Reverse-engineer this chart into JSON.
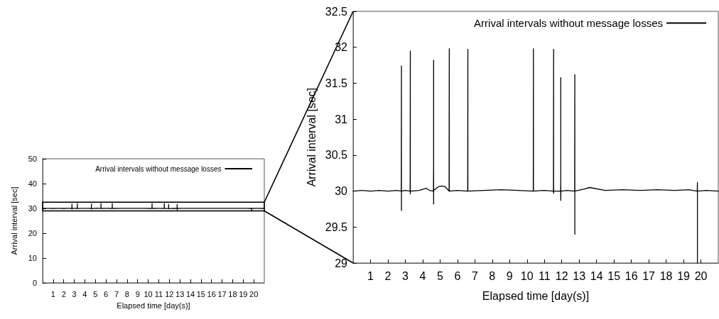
{
  "chart_data": [
    {
      "type": "line",
      "xlabel": "Elapsed time [day(s)]",
      "ylabel": "Arrival interval [sec]",
      "xlim": [
        0,
        21
      ],
      "xticks": [
        1,
        2,
        3,
        4,
        5,
        6,
        7,
        8,
        9,
        10,
        11,
        12,
        13,
        14,
        15,
        16,
        17,
        18,
        19,
        20
      ],
      "ylim": [
        0,
        50
      ],
      "yticks": [
        0,
        10,
        20,
        30,
        40,
        50
      ],
      "grid": false,
      "legend": "top right",
      "marker": "none",
      "line_style": "solid",
      "series": [
        {
          "name": "Arrival intervals without message losses",
          "color": "#000000",
          "x": [
            0,
            0.5,
            1,
            1.5,
            2,
            2.5,
            2.77,
            2.78,
            2.78,
            2.78,
            2.79,
            3.0,
            3.28,
            3.29,
            3.29,
            3.29,
            3.3,
            3.8,
            4.2,
            4.4,
            4.62,
            4.63,
            4.63,
            4.63,
            4.63,
            4.64,
            4.9,
            5.1,
            5.3,
            5.52,
            5.53,
            5.53,
            5.54,
            6.0,
            6.59,
            6.6,
            6.6,
            6.61,
            7.5,
            8.5,
            9.5,
            10.36,
            10.37,
            10.37,
            10.38,
            11.0,
            11.52,
            11.53,
            11.53,
            11.54,
            11.93,
            11.94,
            11.94,
            11.94,
            11.95,
            12.3,
            12.74,
            12.75,
            12.75,
            12.75,
            12.76,
            13.3,
            13.6,
            14.5,
            15.5,
            16.5,
            17.5,
            18.5,
            19.3,
            19.79,
            19.8,
            19.8,
            19.8,
            19.81,
            20.3,
            21
          ],
          "values": [
            30,
            30.01,
            30,
            30.01,
            30,
            30.01,
            30,
            31.74,
            29.73,
            30,
            30,
            30.01,
            30,
            31.95,
            29.96,
            30,
            30,
            30.01,
            30.04,
            30.01,
            30,
            30.34,
            31.82,
            29.82,
            30,
            30.01,
            30.06,
            30.07,
            30.06,
            30,
            31.98,
            30,
            30,
            30.01,
            30,
            31.97,
            30,
            30,
            30.01,
            30.02,
            30.01,
            30,
            31.98,
            30,
            30,
            30.01,
            30,
            31.97,
            29.97,
            30,
            30,
            30.11,
            31.58,
            29.87,
            30,
            30.01,
            30,
            31.62,
            29.4,
            30,
            30,
            30.03,
            30.05,
            30.01,
            30.02,
            30.01,
            30.02,
            30.01,
            30.02,
            30,
            30.12,
            29,
            30,
            30,
            30.01,
            30
          ]
        }
      ]
    },
    {
      "type": "line",
      "xlabel": "Elapsed time [day(s)]",
      "ylabel": "Arrival interval [sec]",
      "xlim": [
        0,
        21
      ],
      "xticks": [
        1,
        2,
        3,
        4,
        5,
        6,
        7,
        8,
        9,
        10,
        11,
        12,
        13,
        14,
        15,
        16,
        17,
        18,
        19,
        20
      ],
      "ylim": [
        29,
        32.5
      ],
      "yticks": [
        29,
        29.5,
        30,
        30.5,
        31,
        31.5,
        32,
        32.5
      ],
      "grid": false,
      "legend": "top right",
      "marker": "none",
      "line_style": "solid",
      "series": [
        {
          "name": "Arrival intervals without message losses",
          "color": "#000000",
          "x": [
            0,
            0.5,
            1,
            1.5,
            2,
            2.5,
            2.77,
            2.78,
            2.78,
            2.78,
            2.79,
            3.0,
            3.28,
            3.29,
            3.29,
            3.29,
            3.3,
            3.8,
            4.2,
            4.4,
            4.62,
            4.63,
            4.63,
            4.63,
            4.63,
            4.64,
            4.9,
            5.1,
            5.3,
            5.52,
            5.53,
            5.53,
            5.54,
            6.0,
            6.59,
            6.6,
            6.6,
            6.61,
            7.5,
            8.5,
            9.5,
            10.36,
            10.37,
            10.37,
            10.38,
            11.0,
            11.52,
            11.53,
            11.53,
            11.54,
            11.93,
            11.94,
            11.94,
            11.94,
            11.95,
            12.3,
            12.74,
            12.75,
            12.75,
            12.75,
            12.76,
            13.3,
            13.6,
            14.5,
            15.5,
            16.5,
            17.5,
            18.5,
            19.3,
            19.79,
            19.8,
            19.8,
            19.8,
            19.81,
            20.3,
            21
          ],
          "values": [
            30,
            30.01,
            30,
            30.01,
            30,
            30.01,
            30,
            31.74,
            29.73,
            30,
            30,
            30.01,
            30,
            31.95,
            29.96,
            30,
            30,
            30.01,
            30.04,
            30.01,
            30,
            30.34,
            31.82,
            29.82,
            30,
            30.01,
            30.06,
            30.07,
            30.06,
            30,
            31.98,
            30,
            30,
            30.01,
            30,
            31.97,
            30,
            30,
            30.01,
            30.02,
            30.01,
            30,
            31.98,
            30,
            30,
            30.01,
            30,
            31.97,
            29.97,
            30,
            30,
            30.11,
            31.58,
            29.87,
            30,
            30.01,
            30,
            31.62,
            29.4,
            30,
            30,
            30.03,
            30.05,
            30.01,
            30.02,
            30.01,
            30.02,
            30.01,
            30.02,
            30,
            30.12,
            29,
            30,
            30,
            30.01,
            30
          ]
        }
      ]
    }
  ]
}
